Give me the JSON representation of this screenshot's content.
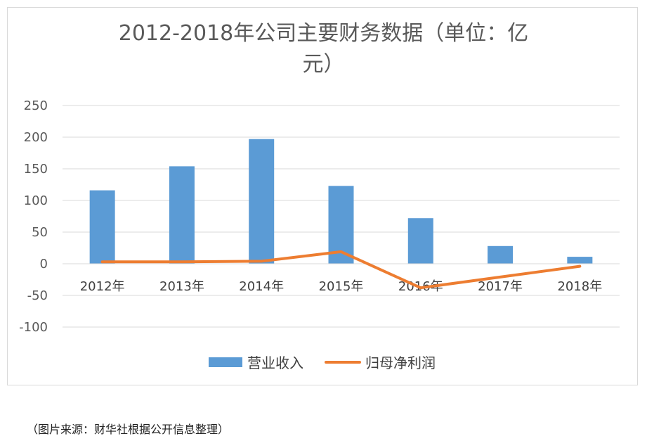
{
  "chart_data": {
    "type": "bar",
    "title_line1": "2012-2018年公司主要财务数据（单位：亿",
    "title_line2": "元）",
    "categories": [
      "2012年",
      "2013年",
      "2014年",
      "2015年",
      "2016年",
      "2017年",
      "2018年"
    ],
    "ylim": [
      -100,
      250
    ],
    "yticks": [
      250,
      200,
      150,
      100,
      50,
      0,
      -50,
      -100
    ],
    "grid": true,
    "legend_position": "bottom",
    "series": [
      {
        "name": "营业收入",
        "type": "bar",
        "color": "#5b9bd5",
        "values": [
          116,
          154,
          197,
          123,
          72,
          28,
          11
        ]
      },
      {
        "name": "归母净利润",
        "type": "line",
        "color": "#ed7d31",
        "values": [
          3,
          3,
          4,
          19,
          -38,
          -21,
          -4
        ]
      }
    ]
  },
  "source_note": "（图片来源：财华社根据公开信息整理）"
}
